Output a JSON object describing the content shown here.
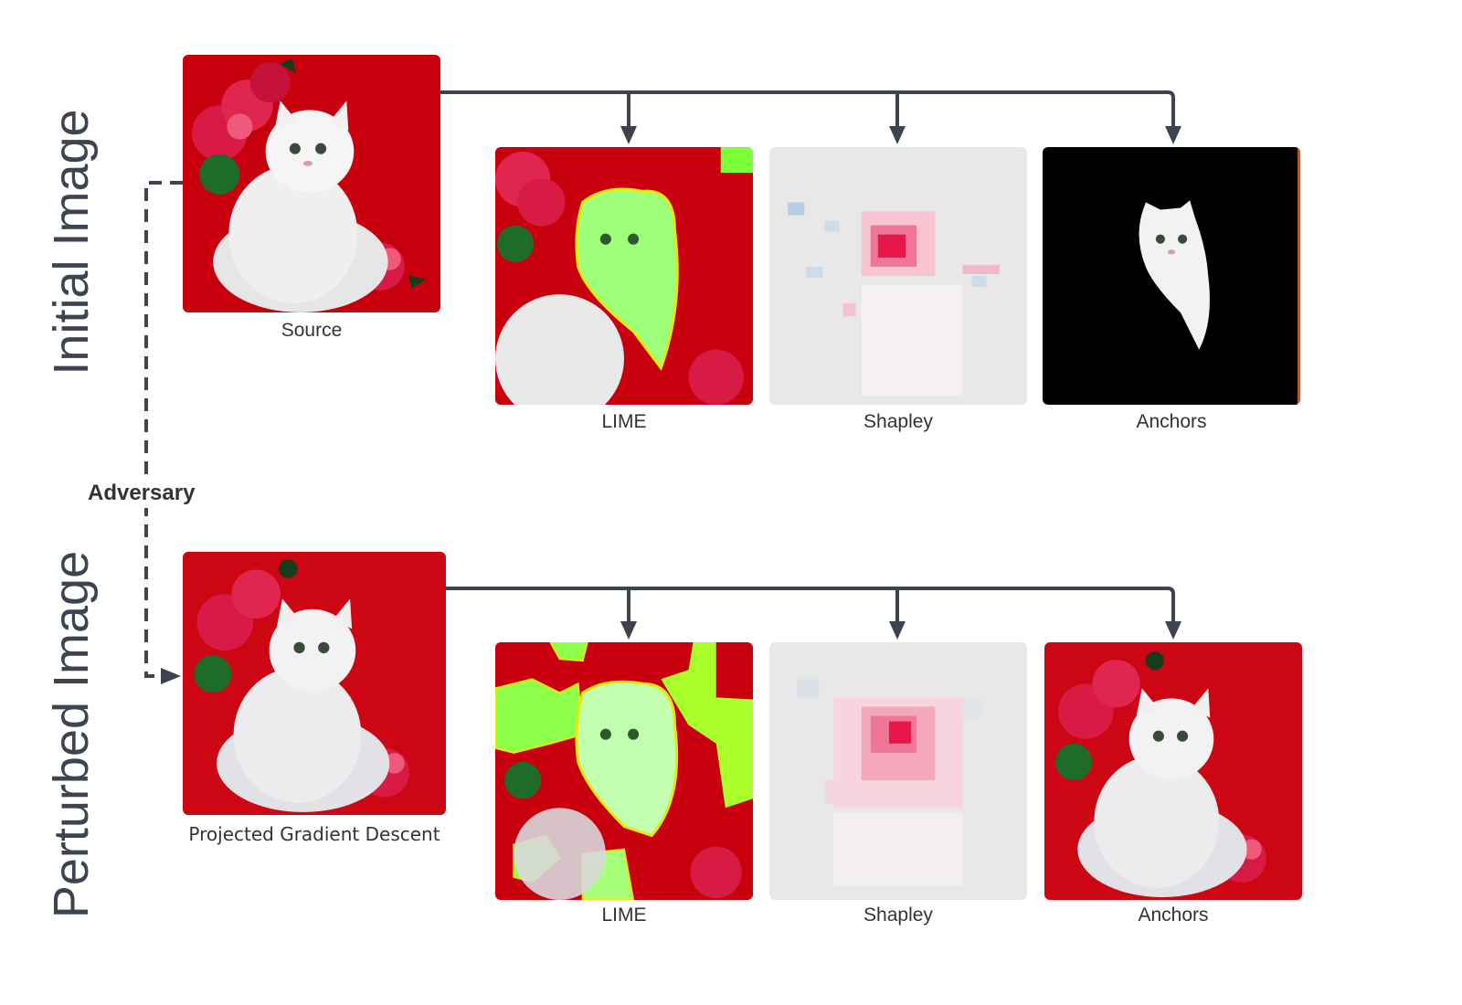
{
  "titles": {
    "initial": "Initial Image",
    "perturbed": "Perturbed Image"
  },
  "adversary_label": "Adversary",
  "initial_row": {
    "source_caption": "Source",
    "outputs": [
      {
        "caption": "LIME"
      },
      {
        "caption": "Shapley"
      },
      {
        "caption": "Anchors"
      }
    ]
  },
  "perturbed_row": {
    "source_caption": "Projected Gradient Descent",
    "outputs": [
      {
        "caption": "LIME"
      },
      {
        "caption": "Shapley"
      },
      {
        "caption": "Anchors"
      }
    ]
  },
  "colors": {
    "background_red": "#c8000e",
    "rose": "#e0264f",
    "lime_highlight": "#7dff3a",
    "lime_outline": "#e8e80a",
    "shapley_bg": "#e8e8e8",
    "shapley_positive": "#e6154a",
    "shapley_negative": "#a7c4e0",
    "connector": "#3d4450"
  }
}
